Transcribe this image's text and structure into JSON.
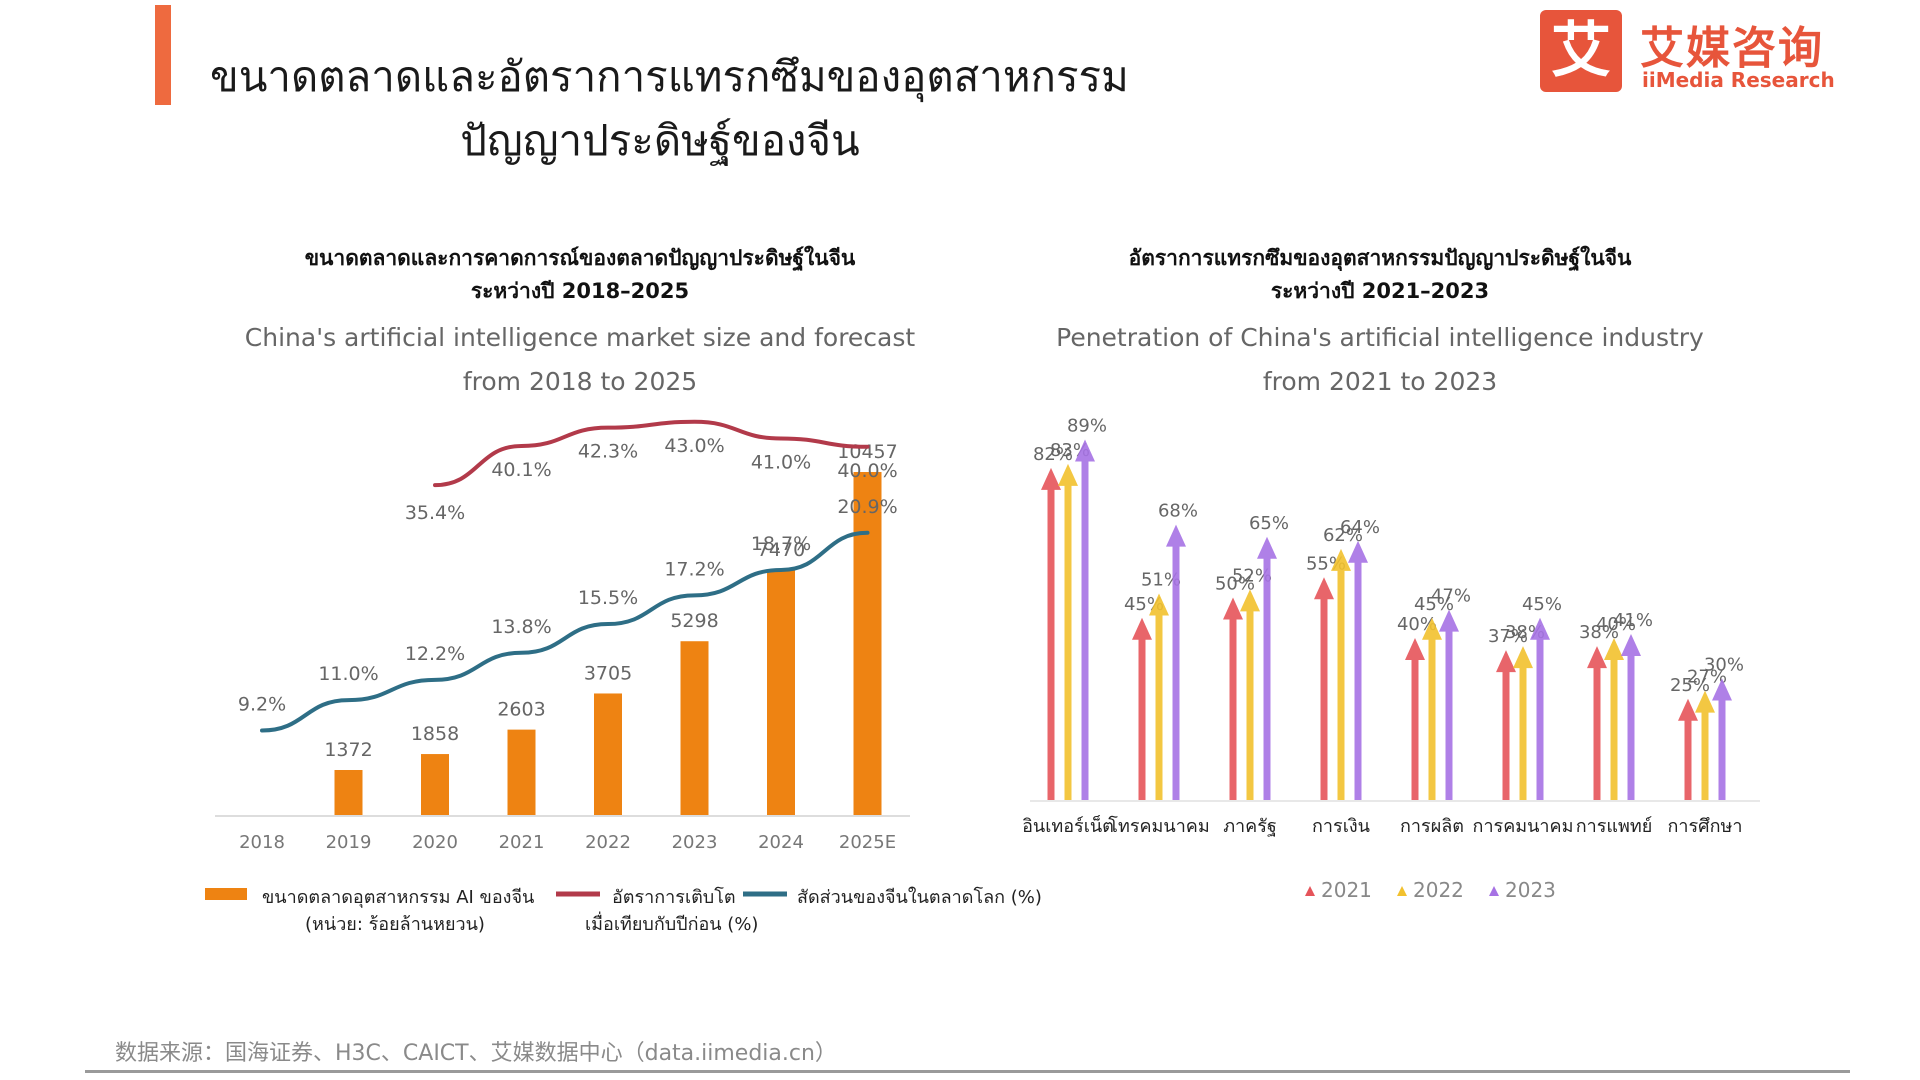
{
  "page": {
    "title_line1": "ขนาดตลาดและอัตราการแทรกซึมของอุตสาหกรรม",
    "title_line2": "ปัญญาประดิษฐ์ของจีน",
    "accent_color": "#ee6a3f"
  },
  "logo": {
    "glyph": "艾",
    "cn": "艾媒咨询",
    "en": "iiMedia Research",
    "color": "#e7553b"
  },
  "source": "数据来源：国海证券、H3C、CAICT、艾媒数据中心（data.iimedia.cn）",
  "chart_data": [
    {
      "type": "bar",
      "title_th_line1": "ขนาดตลาดและการคาดการณ์ของตลาดปัญญาประดิษฐ์ในจีน",
      "title_th_line2": "ระหว่างปี 2018–2025",
      "title_en_line1": "China's artificial intelligence market size and forecast",
      "title_en_line2": "from 2018 to 2025",
      "categories": [
        "2018",
        "2019",
        "2020",
        "2021",
        "2022",
        "2023",
        "2024",
        "2025E"
      ],
      "series": [
        {
          "name": "ขนาดตลาดอุตสาหกรรม AI ของจีน (หน่วย: ร้อยล้านหยวน)",
          "name_line1": "ขนาดตลาดอุตสาหกรรม AI ของจีน",
          "name_line2": "(หน่วย: ร้อยล้านหยวน)",
          "kind": "bar",
          "color": "#ee8312",
          "values": [
            null,
            1372,
            1858,
            2603,
            3705,
            5298,
            7470,
            10457
          ],
          "labels": [
            "",
            "1372",
            "1858",
            "2603",
            "3705",
            "5298",
            "7470",
            "10457"
          ]
        },
        {
          "name": "อัตราการเติบโตเมื่อเทียบกับปีก่อน (%)",
          "name_line1": "อัตราการเติบโต",
          "name_line2": "เมื่อเทียบกับปีก่อน (%)",
          "kind": "line",
          "color": "#b23a4a",
          "values": [
            null,
            null,
            35.4,
            40.1,
            42.3,
            43.0,
            41.0,
            40.0
          ],
          "labels": [
            "",
            "",
            "35.4%",
            "40.1%",
            "42.3%",
            "43.0%",
            "41.0%",
            "40.0%"
          ]
        },
        {
          "name": "สัดส่วนของจีนในตลาดโลก (%)",
          "name_line1": "สัดส่วนของจีนในตลาดโลก (%)",
          "name_line2": "",
          "kind": "line",
          "color": "#2e6e86",
          "values": [
            9.2,
            11.0,
            12.2,
            13.8,
            15.5,
            17.2,
            18.7,
            20.9
          ],
          "labels": [
            "9.2%",
            "11.0%",
            "12.2%",
            "13.8%",
            "15.5%",
            "17.2%",
            "18.7%",
            "20.9%"
          ]
        }
      ],
      "legend": "bottom"
    },
    {
      "type": "bar",
      "title_th_line1": "อัตราการแทรกซึมของอุตสาหกรรมปัญญาประดิษฐ์ในจีน",
      "title_th_line2": "ระหว่างปี 2021–2023",
      "title_en_line1": "Penetration of China's artificial intelligence industry",
      "title_en_line2": "from 2021 to 2023",
      "categories": [
        "อินเทอร์เน็ต",
        "โทรคมนาคม",
        "ภาครัฐ",
        "การเงิน",
        "การผลิต",
        "การคมนาคม",
        "การแพทย์",
        "การศึกษา"
      ],
      "series": [
        {
          "name": "2021",
          "color": "#e5545a",
          "values": [
            82,
            45,
            50,
            55,
            40,
            37,
            38,
            25
          ],
          "labels": [
            "82%",
            "45%",
            "50%",
            "55%",
            "40%",
            "37%",
            "38%",
            "25%"
          ]
        },
        {
          "name": "2022",
          "color": "#f2c12e",
          "values": [
            83,
            51,
            52,
            62,
            45,
            38,
            40,
            27
          ],
          "labels": [
            "83%",
            "51%",
            "52%",
            "62%",
            "45%",
            "38%",
            "40%",
            "27%"
          ]
        },
        {
          "name": "2023",
          "color": "#a672e4",
          "values": [
            89,
            68,
            65,
            64,
            47,
            45,
            41,
            30
          ],
          "labels": [
            "89%",
            "68%",
            "65%",
            "64%",
            "47%",
            "45%",
            "41%",
            "30%"
          ]
        }
      ],
      "legend": "bottom"
    }
  ]
}
